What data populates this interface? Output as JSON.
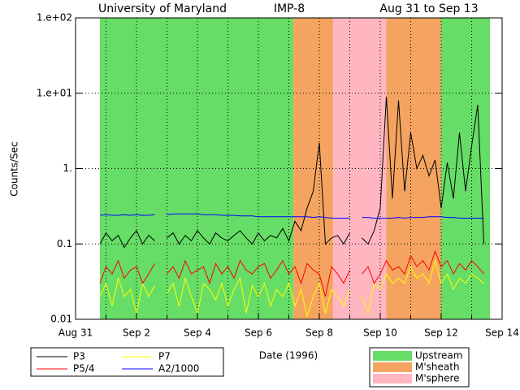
{
  "chart_data": {
    "type": "line",
    "title": [
      "University of Maryland",
      "IMP-8",
      "Aug 31 to Sep 13"
    ],
    "x_label": "Date (1996)",
    "y_label": "Counts/Sec",
    "log_y": true,
    "grid": true,
    "xlim": [
      0,
      14
    ],
    "xticks": [
      {
        "value": 0,
        "label": "Aug 31"
      },
      {
        "value": 2,
        "label": "Sep 2"
      },
      {
        "value": 4,
        "label": "Sep 4"
      },
      {
        "value": 6,
        "label": "Sep 6"
      },
      {
        "value": 8,
        "label": "Sep 8"
      },
      {
        "value": 10,
        "label": "Sep 10"
      },
      {
        "value": 12,
        "label": "Sep 12"
      },
      {
        "value": 14,
        "label": "Sep 14"
      }
    ],
    "xgrid": [
      1,
      2,
      3,
      4,
      5,
      6,
      7,
      8,
      9,
      10,
      11,
      12,
      13
    ],
    "ylim": [
      0.01,
      100
    ],
    "yticks": [
      0.01,
      0.1,
      {
        "value": 1,
        "label": "1."
      },
      {
        "value": 10,
        "label": "1.e+01"
      },
      {
        "value": 100,
        "label": "1.e+02"
      }
    ],
    "regions": [
      {
        "name": "Upstream",
        "color": "#66dd66",
        "spans": [
          [
            0.8,
            7.15
          ],
          [
            12.0,
            13.6
          ]
        ]
      },
      {
        "name": "M'sheath",
        "color": "#f4a460",
        "spans": [
          [
            7.15,
            8.45
          ],
          [
            10.2,
            12.0
          ]
        ]
      },
      {
        "name": "M'sphere",
        "color": "#ffb6c1",
        "spans": [
          [
            8.45,
            10.2
          ]
        ]
      }
    ],
    "x": [
      0.8,
      1.0,
      1.2,
      1.4,
      1.6,
      1.8,
      2.0,
      2.2,
      2.4,
      2.6,
      2.8,
      3.0,
      3.2,
      3.4,
      3.6,
      3.8,
      4.0,
      4.2,
      4.4,
      4.6,
      4.8,
      5.0,
      5.2,
      5.4,
      5.6,
      5.8,
      6.0,
      6.2,
      6.4,
      6.6,
      6.8,
      7.0,
      7.2,
      7.4,
      7.6,
      7.8,
      8.0,
      8.2,
      8.4,
      8.6,
      8.8,
      9.0,
      9.2,
      9.4,
      9.6,
      9.8,
      10.0,
      10.2,
      10.4,
      10.6,
      10.8,
      11.0,
      11.2,
      11.4,
      11.6,
      11.8,
      12.0,
      12.2,
      12.4,
      12.6,
      12.8,
      13.0,
      13.2,
      13.4
    ],
    "series": [
      {
        "name": "P3",
        "color": "#000000",
        "values": [
          0.1,
          0.14,
          0.11,
          0.13,
          0.09,
          0.12,
          0.15,
          0.1,
          0.13,
          0.11,
          null,
          0.12,
          0.14,
          0.1,
          0.13,
          0.11,
          0.15,
          0.12,
          0.1,
          0.14,
          0.12,
          0.11,
          0.13,
          0.15,
          0.12,
          0.1,
          0.14,
          0.11,
          0.13,
          0.12,
          0.16,
          0.11,
          0.2,
          0.15,
          0.3,
          0.5,
          2.2,
          0.1,
          0.12,
          0.13,
          0.1,
          0.14,
          null,
          0.12,
          0.1,
          0.15,
          0.3,
          9,
          0.4,
          8,
          0.5,
          3,
          1,
          1.5,
          0.8,
          1.3,
          0.3,
          1.2,
          0.4,
          3,
          0.5,
          2,
          7,
          0.1
        ]
      },
      {
        "name": "P5/4",
        "color": "#ff0000",
        "values": [
          0.03,
          0.05,
          0.04,
          0.06,
          0.035,
          0.045,
          0.05,
          0.03,
          0.04,
          0.055,
          null,
          0.04,
          0.05,
          0.035,
          0.06,
          0.04,
          0.045,
          0.05,
          0.03,
          0.055,
          0.04,
          0.05,
          0.035,
          0.06,
          0.045,
          0.04,
          0.05,
          0.055,
          0.035,
          0.045,
          0.06,
          0.04,
          0.05,
          0.03,
          0.055,
          0.045,
          0.04,
          0.02,
          0.05,
          0.04,
          0.03,
          0.045,
          null,
          0.04,
          0.05,
          0.03,
          0.04,
          0.06,
          0.045,
          0.05,
          0.04,
          0.07,
          0.05,
          0.06,
          0.045,
          0.08,
          0.05,
          0.06,
          0.04,
          0.055,
          0.045,
          0.06,
          0.05,
          0.04
        ]
      },
      {
        "name": "P7",
        "color": "#ffff00",
        "values": [
          0.02,
          0.03,
          0.015,
          0.035,
          0.02,
          0.025,
          0.012,
          0.03,
          0.02,
          0.028,
          null,
          0.022,
          0.03,
          0.015,
          0.035,
          0.02,
          0.012,
          0.03,
          0.025,
          0.018,
          0.03,
          0.015,
          0.025,
          0.035,
          0.012,
          0.028,
          0.02,
          0.03,
          0.015,
          0.025,
          0.02,
          0.03,
          0.015,
          0.025,
          0.011,
          0.02,
          0.03,
          0.012,
          0.025,
          0.02,
          0.015,
          0.025,
          null,
          0.02,
          0.012,
          0.03,
          0.025,
          0.04,
          0.03,
          0.035,
          0.03,
          0.05,
          0.035,
          0.04,
          0.03,
          0.06,
          0.03,
          0.04,
          0.025,
          0.035,
          0.03,
          0.04,
          0.035,
          0.03
        ]
      },
      {
        "name": "A2/1000",
        "color": "#0000ff",
        "values": [
          0.24,
          0.245,
          0.24,
          0.24,
          0.245,
          0.24,
          0.245,
          0.24,
          0.24,
          0.245,
          null,
          0.245,
          0.25,
          0.25,
          0.25,
          0.25,
          0.25,
          0.245,
          0.245,
          0.245,
          0.24,
          0.24,
          0.24,
          0.235,
          0.235,
          0.235,
          0.23,
          0.23,
          0.23,
          0.23,
          0.23,
          0.23,
          0.23,
          0.23,
          0.23,
          0.225,
          0.23,
          0.225,
          0.22,
          0.22,
          0.22,
          0.22,
          null,
          0.225,
          0.225,
          0.22,
          0.22,
          0.22,
          0.22,
          0.225,
          0.22,
          0.225,
          0.225,
          0.225,
          0.23,
          0.23,
          0.23,
          0.225,
          0.225,
          0.22,
          0.22,
          0.22,
          0.22,
          0.22
        ]
      }
    ]
  }
}
